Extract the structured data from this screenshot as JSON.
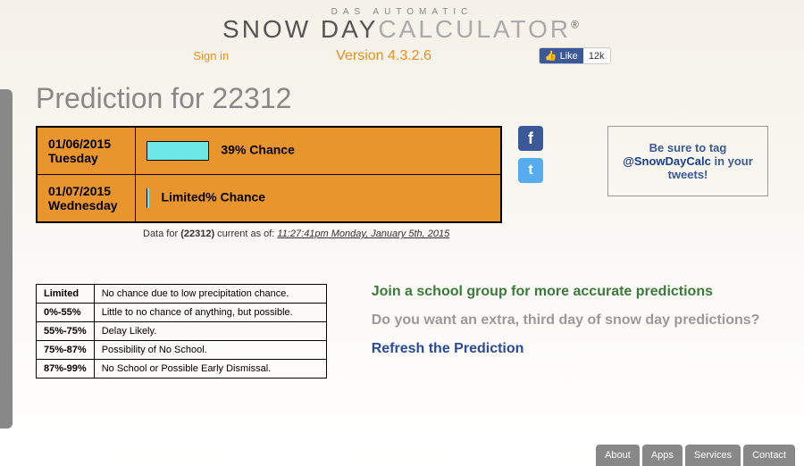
{
  "header": {
    "tagline": "DAS AUTOMATIC",
    "title_snow": "SNOW DAY",
    "title_calc": "CALCULATOR",
    "reg": "®",
    "signin": "Sign in",
    "version": "Version 4.3.2.6",
    "fb_like": "Like",
    "fb_count": "12k"
  },
  "prediction": {
    "title": "Prediction for 22312",
    "rows": [
      {
        "date": "01/06/2015",
        "day": "Tuesday",
        "chance": "39% Chance"
      },
      {
        "date": "01/07/2015",
        "day": "Wednesday",
        "chance": "Limited% Chance"
      }
    ],
    "data_note_prefix": "Data for ",
    "data_note_zip": "(22312)",
    "data_note_mid": " current as of: ",
    "data_note_time": "11:27:41pm Monday, January 5th, 2015"
  },
  "tagbox": {
    "pre": "Be sure to tag ",
    "handle": "@SnowDayCalc",
    "post": " in your tweets!"
  },
  "legend": [
    {
      "range": "Limited",
      "desc": "No chance due to low precipitation chance."
    },
    {
      "range": "0%-55%",
      "desc": "Little to no chance of anything, but possible."
    },
    {
      "range": "55%-75%",
      "desc": "Delay Likely."
    },
    {
      "range": "75%-87%",
      "desc": "Possibility of No School."
    },
    {
      "range": "87%-99%",
      "desc": "No School or Possible Early Dismissal."
    }
  ],
  "links": {
    "green": "Join a school group for more accurate predictions",
    "gray": "Do you want an extra, third day of snow day predictions?",
    "blue": "Refresh the Prediction"
  },
  "footer": [
    "About",
    "Apps",
    "Services",
    "Contact"
  ]
}
